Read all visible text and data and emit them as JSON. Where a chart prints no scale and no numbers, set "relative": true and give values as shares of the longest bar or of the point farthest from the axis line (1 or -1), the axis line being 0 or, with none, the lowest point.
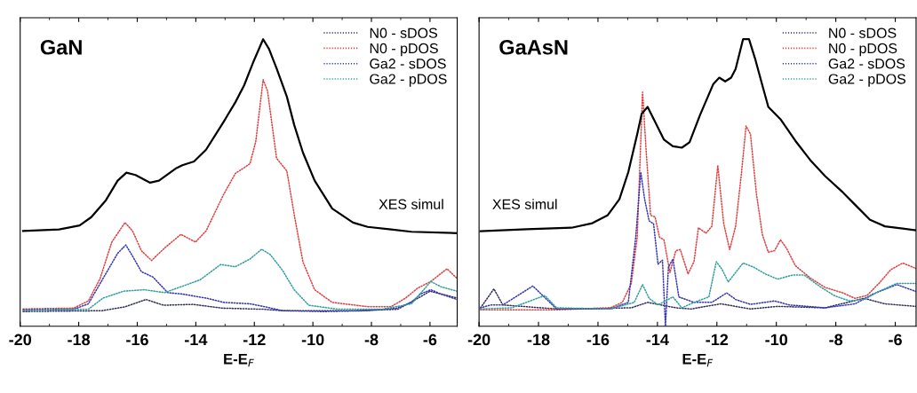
{
  "chart_data": [
    {
      "type": "line",
      "title": "GaN",
      "xlabel": "E-E$_{F}$",
      "relative": true,
      "xlim": [
        -20,
        -5.07
      ],
      "xticks": [
        -20,
        -18,
        -16,
        -14,
        -12,
        -10,
        -8,
        -6
      ],
      "grid": false,
      "legend": "top right",
      "marker": "none",
      "series": [
        {
          "name": "N0 - sDOS",
          "color": "#303060",
          "line_style": "dotted",
          "x": [
            -19.9,
            -17.2,
            -16.4,
            -15.7,
            -15.1,
            -14.1,
            -13.1,
            -11.7,
            -11.0,
            -8.6,
            -7.1,
            -6.4,
            -6.0,
            -5.07
          ],
          "values": [
            0.051,
            0.054,
            0.068,
            0.093,
            0.073,
            0.076,
            0.063,
            0.059,
            0.054,
            0.054,
            0.059,
            0.098,
            0.122,
            0.098
          ]
        },
        {
          "name": "N0 - pDOS",
          "color": "#e04040",
          "line_style": "dotted",
          "x": [
            -19.9,
            -18.17,
            -17.67,
            -17.27,
            -16.87,
            -16.42,
            -16.16,
            -15.86,
            -15.51,
            -15.06,
            -14.51,
            -14.01,
            -13.65,
            -13.05,
            -12.65,
            -12.15,
            -11.95,
            -11.7,
            -11.55,
            -11.24,
            -10.89,
            -10.64,
            -10.34,
            -9.94,
            -9.34,
            -8.13,
            -7.33,
            -6.83,
            -6.43,
            -5.97,
            -5.42,
            -5.07
          ],
          "values": [
            0.06,
            0.063,
            0.088,
            0.166,
            0.293,
            0.361,
            0.332,
            0.263,
            0.229,
            0.273,
            0.32,
            0.293,
            0.332,
            0.459,
            0.532,
            0.566,
            0.644,
            0.859,
            0.82,
            0.585,
            0.541,
            0.39,
            0.224,
            0.127,
            0.083,
            0.068,
            0.068,
            0.098,
            0.132,
            0.156,
            0.2,
            0.166
          ]
        },
        {
          "name": "Ga2 - sDOS",
          "color": "#3535b5",
          "line_style": "dotted",
          "x": [
            -19.9,
            -18.17,
            -17.67,
            -17.17,
            -16.67,
            -16.39,
            -16.16,
            -15.86,
            -15.46,
            -14.96,
            -14.46,
            -13.65,
            -13.05,
            -12.15,
            -11.65,
            -11.04,
            -9.64,
            -8.13,
            -7.13,
            -6.63,
            -6.33,
            -5.97,
            -5.62,
            -5.07
          ],
          "values": [
            0.057,
            0.059,
            0.078,
            0.166,
            0.254,
            0.283,
            0.244,
            0.19,
            0.171,
            0.117,
            0.112,
            0.098,
            0.083,
            0.078,
            0.068,
            0.054,
            0.051,
            0.054,
            0.063,
            0.083,
            0.112,
            0.127,
            0.112,
            0.093
          ]
        },
        {
          "name": "Ga2 - pDOS",
          "color": "#30a0a0",
          "line_style": "dotted",
          "x": [
            -19.9,
            -17.67,
            -17.17,
            -16.47,
            -15.76,
            -15.06,
            -14.66,
            -13.86,
            -13.15,
            -12.65,
            -12.15,
            -11.75,
            -11.45,
            -11.04,
            -10.64,
            -10.14,
            -9.14,
            -7.63,
            -6.63,
            -5.97,
            -5.62,
            -5.07
          ],
          "values": [
            0.054,
            0.059,
            0.098,
            0.122,
            0.127,
            0.117,
            0.132,
            0.161,
            0.215,
            0.207,
            0.234,
            0.268,
            0.249,
            0.195,
            0.127,
            0.073,
            0.059,
            0.059,
            0.078,
            0.156,
            0.137,
            0.122
          ]
        },
        {
          "name": "XES simul",
          "color": "#000000",
          "line_style": "solid",
          "x": [
            -19.9,
            -18.67,
            -17.97,
            -17.57,
            -17.07,
            -16.67,
            -16.37,
            -16.06,
            -15.56,
            -15.26,
            -14.66,
            -14.46,
            -14.06,
            -13.65,
            -13.05,
            -12.65,
            -12.35,
            -12.05,
            -11.7,
            -11.5,
            -11.24,
            -10.89,
            -10.64,
            -10.34,
            -9.94,
            -9.34,
            -8.63,
            -8.13,
            -7.33,
            -6.63,
            -5.07
          ],
          "values": [
            0.332,
            0.337,
            0.351,
            0.38,
            0.439,
            0.507,
            0.535,
            0.527,
            0.5,
            0.507,
            0.551,
            0.561,
            0.574,
            0.615,
            0.712,
            0.78,
            0.839,
            0.917,
            1.0,
            0.966,
            0.898,
            0.8,
            0.702,
            0.605,
            0.507,
            0.41,
            0.361,
            0.346,
            0.337,
            0.329,
            0.324
          ]
        }
      ]
    },
    {
      "type": "line",
      "title": "GaAsN",
      "xlabel": "E-E$_{F}$",
      "relative": true,
      "xlim": [
        -20,
        -5.3
      ],
      "xticks": [
        -20,
        -18,
        -16,
        -14,
        -12,
        -10,
        -8,
        -6
      ],
      "grid": false,
      "legend": "top right",
      "marker": "none",
      "series": [
        {
          "name": "N0 - sDOS",
          "color": "#303060",
          "line_style": "dotted",
          "x": [
            -19.95,
            -19.5,
            -19.2,
            -17.39,
            -14.88,
            -14.33,
            -13.88,
            -13.38,
            -12.87,
            -11.87,
            -10.87,
            -9.96,
            -8.36,
            -7.05,
            -6.35,
            -5.3
          ],
          "values": [
            0.064,
            0.13,
            0.074,
            0.06,
            0.064,
            0.083,
            0.074,
            0.064,
            0.06,
            0.078,
            0.06,
            0.069,
            0.064,
            0.097,
            0.078,
            0.069
          ]
        },
        {
          "name": "N0 - pDOS",
          "color": "#e04040",
          "line_style": "dotted",
          "x": [
            -19.95,
            -17.39,
            -15.58,
            -15.18,
            -14.88,
            -14.68,
            -14.5,
            -14.38,
            -14.23,
            -14.08,
            -13.93,
            -13.78,
            -13.58,
            -13.38,
            -13.23,
            -12.97,
            -12.77,
            -12.62,
            -12.37,
            -12.17,
            -11.97,
            -11.77,
            -11.57,
            -11.37,
            -11.17,
            -11.02,
            -10.87,
            -10.67,
            -10.47,
            -10.27,
            -10.06,
            -9.86,
            -9.66,
            -9.36,
            -8.86,
            -8.36,
            -7.76,
            -7.35,
            -6.95,
            -6.55,
            -6.15,
            -5.75,
            -5.3
          ],
          "values": [
            0.057,
            0.057,
            0.064,
            0.083,
            0.149,
            0.31,
            0.816,
            0.612,
            0.386,
            0.381,
            0.31,
            0.301,
            0.187,
            0.263,
            0.267,
            0.182,
            0.225,
            0.343,
            0.324,
            0.348,
            0.56,
            0.357,
            0.267,
            0.348,
            0.537,
            0.698,
            0.669,
            0.461,
            0.319,
            0.258,
            0.263,
            0.301,
            0.272,
            0.211,
            0.168,
            0.135,
            0.116,
            0.097,
            0.107,
            0.149,
            0.197,
            0.22,
            0.201
          ]
        },
        {
          "name": "Ga2 - sDOS",
          "color": "#3535b5",
          "line_style": "dotted",
          "x": [
            -19.95,
            -19.6,
            -19.2,
            -18.19,
            -17.39,
            -15.58,
            -14.98,
            -14.73,
            -14.56,
            -14.43,
            -14.28,
            -14.13,
            -13.98,
            -13.83,
            -13.73,
            -13.63,
            -13.48,
            -13.28,
            -12.77,
            -12.17,
            -11.67,
            -11.37,
            -10.87,
            -10.06,
            -9.56,
            -8.36,
            -7.35,
            -6.75,
            -5.95,
            -5.3
          ],
          "values": [
            0.064,
            0.074,
            0.074,
            0.14,
            0.06,
            0.06,
            0.083,
            0.31,
            0.537,
            0.442,
            0.367,
            0.357,
            0.216,
            0.23,
            0.0,
            0.206,
            0.234,
            0.102,
            0.083,
            0.083,
            0.116,
            0.093,
            0.076,
            0.088,
            0.074,
            0.064,
            0.078,
            0.112,
            0.145,
            0.121
          ]
        },
        {
          "name": "Ga2 - pDOS",
          "color": "#30a0a0",
          "line_style": "dotted",
          "x": [
            -19.95,
            -18.9,
            -17.79,
            -17.39,
            -15.58,
            -14.78,
            -14.5,
            -14.28,
            -13.98,
            -13.48,
            -13.18,
            -12.77,
            -12.27,
            -12.02,
            -11.82,
            -11.62,
            -11.37,
            -11.12,
            -10.77,
            -10.37,
            -9.96,
            -9.46,
            -9.06,
            -8.56,
            -8.06,
            -7.55,
            -7.05,
            -6.55,
            -5.95,
            -5.3
          ],
          "values": [
            0.06,
            0.064,
            0.107,
            0.064,
            0.06,
            0.083,
            0.145,
            0.097,
            0.074,
            0.102,
            0.064,
            0.083,
            0.102,
            0.225,
            0.197,
            0.154,
            0.187,
            0.22,
            0.206,
            0.182,
            0.164,
            0.178,
            0.178,
            0.14,
            0.107,
            0.088,
            0.093,
            0.121,
            0.149,
            0.149
          ]
        },
        {
          "name": "XES simul",
          "color": "#000000",
          "line_style": "solid",
          "x": [
            -19.95,
            -18.39,
            -16.89,
            -16.19,
            -15.68,
            -15.28,
            -14.98,
            -14.68,
            -14.53,
            -14.33,
            -14.08,
            -13.78,
            -13.48,
            -13.18,
            -12.92,
            -12.57,
            -12.12,
            -11.92,
            -11.72,
            -11.52,
            -11.37,
            -11.12,
            -10.92,
            -10.72,
            -10.47,
            -10.27,
            -9.86,
            -9.36,
            -8.86,
            -8.36,
            -7.76,
            -7.35,
            -6.85,
            -6.35,
            -5.3
          ],
          "values": [
            0.331,
            0.338,
            0.343,
            0.359,
            0.386,
            0.442,
            0.537,
            0.669,
            0.74,
            0.764,
            0.712,
            0.65,
            0.627,
            0.622,
            0.641,
            0.735,
            0.844,
            0.866,
            0.853,
            0.866,
            0.896,
            1.0,
            1.0,
            0.934,
            0.839,
            0.764,
            0.721,
            0.646,
            0.579,
            0.523,
            0.466,
            0.423,
            0.371,
            0.348,
            0.334
          ]
        }
      ]
    }
  ]
}
